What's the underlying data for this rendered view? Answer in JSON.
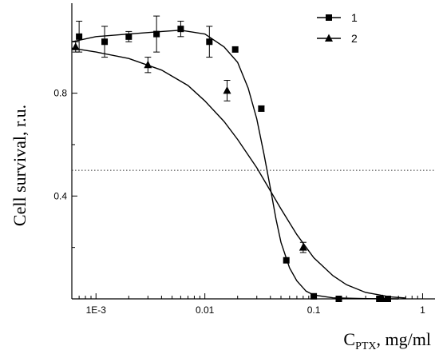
{
  "chart_data": {
    "type": "scatter",
    "xscale": "log",
    "xlim": [
      0.0006,
      1.3
    ],
    "ylim": [
      0.0,
      1.15
    ],
    "xticks": [
      {
        "value": 0.001,
        "label": "1E-3"
      },
      {
        "value": 0.01,
        "label": "0.01"
      },
      {
        "value": 0.1,
        "label": "0.1"
      },
      {
        "value": 1,
        "label": "1"
      }
    ],
    "yticks": [
      {
        "value": 0.4,
        "label": "0.4"
      },
      {
        "value": 0.8,
        "label": "0.8"
      }
    ],
    "ylabel": "Cell survival, r.u.",
    "xlabel_main": "C",
    "xlabel_sub": "PTX",
    "xlabel_rest": ", mg/ml",
    "legend_position": "top-right",
    "reference_line": {
      "y": 0.5,
      "style": "dotted"
    },
    "series": [
      {
        "name": "1",
        "marker": "square",
        "points": [
          {
            "x": 0.0007,
            "y": 1.02,
            "err": 0.06
          },
          {
            "x": 0.0012,
            "y": 1.0,
            "err": 0.06
          },
          {
            "x": 0.002,
            "y": 1.02,
            "err": 0.02
          },
          {
            "x": 0.0036,
            "y": 1.03,
            "err": 0.07
          },
          {
            "x": 0.006,
            "y": 1.05,
            "err": 0.03
          },
          {
            "x": 0.011,
            "y": 1.0,
            "err": 0.06
          },
          {
            "x": 0.019,
            "y": 0.97,
            "err": 0.0
          },
          {
            "x": 0.033,
            "y": 0.74,
            "err": 0.01
          },
          {
            "x": 0.056,
            "y": 0.15,
            "err": 0.0
          },
          {
            "x": 0.1,
            "y": 0.01,
            "err": 0.0
          },
          {
            "x": 0.17,
            "y": 0.0,
            "err": 0.0
          },
          {
            "x": 0.4,
            "y": 0.0,
            "err": 0.0
          },
          {
            "x": 0.48,
            "y": 0.0,
            "err": 0.0
          }
        ],
        "fit": [
          [
            0.0006,
            1.0
          ],
          [
            0.001,
            1.02
          ],
          [
            0.002,
            1.03
          ],
          [
            0.004,
            1.04
          ],
          [
            0.006,
            1.045
          ],
          [
            0.01,
            1.03
          ],
          [
            0.015,
            0.98
          ],
          [
            0.02,
            0.92
          ],
          [
            0.025,
            0.82
          ],
          [
            0.03,
            0.7
          ],
          [
            0.035,
            0.56
          ],
          [
            0.04,
            0.43
          ],
          [
            0.045,
            0.31
          ],
          [
            0.05,
            0.22
          ],
          [
            0.06,
            0.12
          ],
          [
            0.07,
            0.07
          ],
          [
            0.085,
            0.03
          ],
          [
            0.1,
            0.015
          ],
          [
            0.15,
            0.004
          ],
          [
            0.3,
            0.001
          ],
          [
            0.6,
            0.0
          ]
        ]
      },
      {
        "name": "2",
        "marker": "triangle",
        "points": [
          {
            "x": 0.00065,
            "y": 0.98,
            "err": 0.02
          },
          {
            "x": 0.003,
            "y": 0.91,
            "err": 0.03
          },
          {
            "x": 0.016,
            "y": 0.81,
            "err": 0.04
          },
          {
            "x": 0.08,
            "y": 0.2,
            "err": 0.02
          },
          {
            "x": 0.43,
            "y": 0.0,
            "err": 0.0
          }
        ],
        "fit": [
          [
            0.0006,
            0.975
          ],
          [
            0.001,
            0.96
          ],
          [
            0.002,
            0.935
          ],
          [
            0.004,
            0.89
          ],
          [
            0.007,
            0.83
          ],
          [
            0.01,
            0.77
          ],
          [
            0.015,
            0.69
          ],
          [
            0.02,
            0.62
          ],
          [
            0.03,
            0.51
          ],
          [
            0.04,
            0.42
          ],
          [
            0.05,
            0.35
          ],
          [
            0.07,
            0.25
          ],
          [
            0.1,
            0.16
          ],
          [
            0.15,
            0.09
          ],
          [
            0.2,
            0.055
          ],
          [
            0.3,
            0.025
          ],
          [
            0.5,
            0.008
          ],
          [
            0.7,
            0.003
          ]
        ]
      }
    ]
  }
}
